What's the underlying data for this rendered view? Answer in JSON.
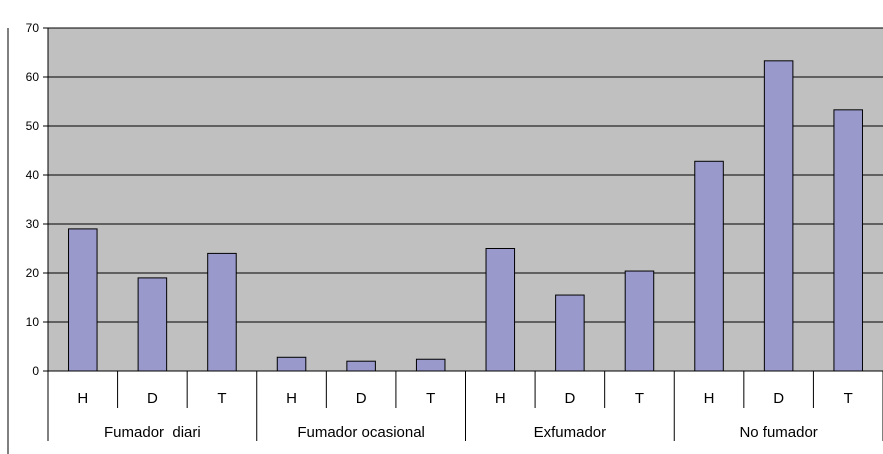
{
  "chart_data": {
    "type": "bar",
    "groups": [
      {
        "label": "Fumador  diari",
        "categories": [
          "H",
          "D",
          "T"
        ],
        "values": [
          29,
          19,
          24
        ]
      },
      {
        "label": "Fumador ocasional",
        "categories": [
          "H",
          "D",
          "T"
        ],
        "values": [
          2.8,
          2,
          2.4
        ]
      },
      {
        "label": "Exfumador",
        "categories": [
          "H",
          "D",
          "T"
        ],
        "values": [
          25,
          15.5,
          20.4
        ]
      },
      {
        "label": "No fumador",
        "categories": [
          "H",
          "D",
          "T"
        ],
        "values": [
          42.8,
          63.3,
          53.3
        ]
      }
    ],
    "y_ticks": [
      "0",
      "10",
      "20",
      "30",
      "40",
      "50",
      "60",
      "70"
    ],
    "ylim": [
      0,
      70
    ],
    "grid": true,
    "plot_background": "#c0c0c0",
    "bar_color": "#9999cc",
    "bar_border": "#000000"
  }
}
